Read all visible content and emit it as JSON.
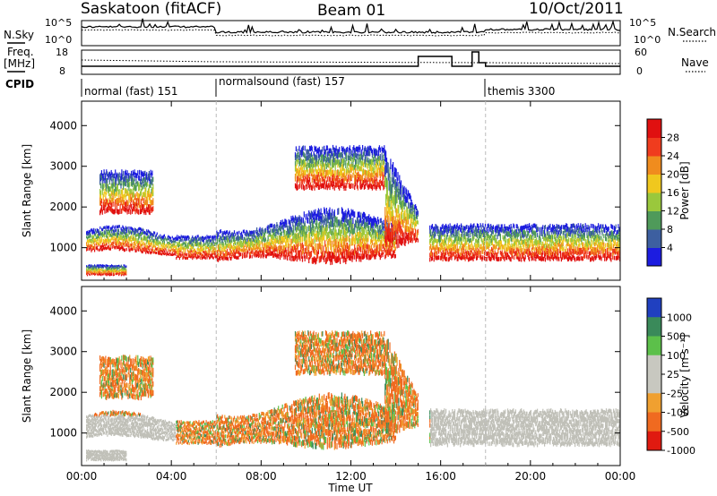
{
  "header": {
    "title": "Saskatoon (fitACF)",
    "beam": "Beam 01",
    "date": "10/Oct/2011"
  },
  "top_panels": {
    "nsky_label": "N.Sky",
    "nsearch_label": "N.Search",
    "freq_label_1": "Freq.",
    "freq_label_2": "[MHz]",
    "nave_label": "Nave",
    "cpid_label": "CPID",
    "nsky_ticks": [
      "10^5",
      "10^0"
    ],
    "nsearch_ticks": [
      "10^5",
      "10^0"
    ],
    "freq_ticks": [
      "18",
      "8"
    ],
    "nave_ticks": [
      "60",
      "0"
    ]
  },
  "cpid_segments": [
    {
      "label": "normal (fast) 151",
      "start_hour": 0,
      "end_hour": 6
    },
    {
      "label": "normalsound (fast) 157",
      "start_hour": 6,
      "end_hour": 18
    },
    {
      "label": "themis 3300",
      "start_hour": 18,
      "end_hour": 24
    }
  ],
  "chart_data": [
    {
      "type": "heatmap",
      "title": "Power",
      "ylabel": "Slant Range [km]",
      "ylim": [
        200,
        4600
      ],
      "yticks": [
        "1000",
        "2000",
        "3000",
        "4000"
      ],
      "xlim": [
        "00:00",
        "24:00"
      ],
      "colorbar_label": "Power [dB]",
      "colorbar_ticks": [
        "4",
        "8",
        "12",
        "16",
        "20",
        "24",
        "28"
      ],
      "colors": [
        "#1c1ce0",
        "#3d5fa0",
        "#4f9a5a",
        "#9ac83c",
        "#f0c81e",
        "#f08c1e",
        "#f03c1e",
        "#e01010"
      ]
    },
    {
      "type": "heatmap",
      "title": "Velocity",
      "ylabel": "Slant Range [km]",
      "ylim": [
        200,
        4600
      ],
      "yticks": [
        "1000",
        "2000",
        "3000",
        "4000"
      ],
      "xlim": [
        "00:00",
        "24:00"
      ],
      "colorbar_label": "Velocity [m s⁻¹]",
      "colorbar_ticks": [
        "1000",
        "500",
        "100",
        "25",
        "-25",
        "-100",
        "-500",
        "-1000"
      ],
      "colors": [
        "#2040c0",
        "#3a8a5a",
        "#5cc04a",
        "#c8c8c0",
        "#c8c8c0",
        "#f0a030",
        "#f06a20",
        "#e01a10"
      ],
      "ground_scatter_color": "#c0c0b8"
    }
  ],
  "x_axis": {
    "ticks": [
      "00:00",
      "04:00",
      "08:00",
      "12:00",
      "16:00",
      "20:00",
      "00:00"
    ],
    "label": "Time UT"
  }
}
